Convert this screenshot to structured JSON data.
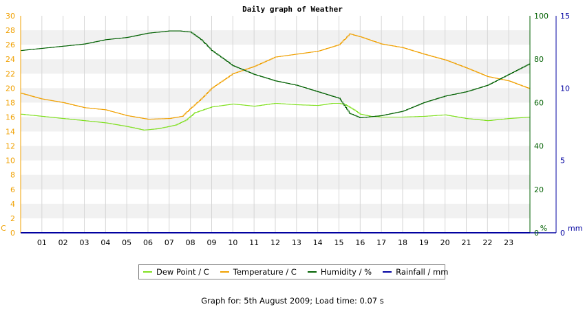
{
  "chart_data": {
    "type": "line",
    "title": "Daily graph of Weather",
    "x_ticks": [
      "01",
      "02",
      "03",
      "04",
      "05",
      "06",
      "07",
      "08",
      "09",
      "10",
      "11",
      "12",
      "13",
      "14",
      "15",
      "16",
      "17",
      "18",
      "19",
      "20",
      "21",
      "22",
      "23"
    ],
    "xlim": [
      0,
      24
    ],
    "axes": {
      "temp": {
        "unit_label": "C",
        "range": [
          0,
          30
        ],
        "ticks": [
          0,
          2,
          4,
          6,
          8,
          10,
          12,
          14,
          16,
          18,
          20,
          22,
          24,
          26,
          28,
          30
        ],
        "color": "#f0a000"
      },
      "humidity": {
        "unit_label": "%",
        "range": [
          0,
          100
        ],
        "ticks": [
          0,
          20,
          40,
          60,
          80,
          100
        ],
        "color": "#006000"
      },
      "rain": {
        "unit_label": "mm",
        "range": [
          0,
          15
        ],
        "ticks": [
          0,
          5,
          10,
          15
        ],
        "color": "#0000a0"
      }
    },
    "series": [
      {
        "name": "Dew Point / C",
        "axis": "temp",
        "color": "#80e020",
        "points": [
          [
            0,
            16.4
          ],
          [
            1,
            16.1
          ],
          [
            2,
            15.8
          ],
          [
            3,
            15.5
          ],
          [
            4,
            15.2
          ],
          [
            5,
            14.7
          ],
          [
            5.8,
            14.2
          ],
          [
            6.5,
            14.4
          ],
          [
            7.3,
            14.9
          ],
          [
            7.8,
            15.6
          ],
          [
            8.2,
            16.6
          ],
          [
            8.7,
            17.1
          ],
          [
            9,
            17.4
          ],
          [
            10,
            17.8
          ],
          [
            11,
            17.5
          ],
          [
            12,
            17.9
          ],
          [
            13,
            17.7
          ],
          [
            14,
            17.6
          ],
          [
            14.7,
            17.9
          ],
          [
            15,
            17.9
          ],
          [
            15.3,
            17.7
          ],
          [
            15.7,
            17
          ],
          [
            16,
            16.4
          ],
          [
            16.5,
            16.1
          ],
          [
            17,
            16
          ],
          [
            18,
            16
          ],
          [
            19,
            16.1
          ],
          [
            20,
            16.3
          ],
          [
            21,
            15.8
          ],
          [
            22,
            15.5
          ],
          [
            23,
            15.8
          ],
          [
            24,
            16
          ]
        ]
      },
      {
        "name": "Temperature / C",
        "axis": "temp",
        "color": "#f0a000",
        "points": [
          [
            0,
            19.3
          ],
          [
            1,
            18.5
          ],
          [
            2,
            18
          ],
          [
            3,
            17.3
          ],
          [
            4,
            17
          ],
          [
            5,
            16.2
          ],
          [
            6,
            15.7
          ],
          [
            7,
            15.8
          ],
          [
            7.6,
            16.1
          ],
          [
            8,
            17.2
          ],
          [
            8.5,
            18.5
          ],
          [
            9,
            20
          ],
          [
            10,
            22
          ],
          [
            11,
            23
          ],
          [
            12,
            24.3
          ],
          [
            13,
            24.7
          ],
          [
            14,
            25.1
          ],
          [
            15,
            26
          ],
          [
            15.5,
            27.5
          ],
          [
            16,
            27.1
          ],
          [
            17,
            26.1
          ],
          [
            18,
            25.6
          ],
          [
            19,
            24.7
          ],
          [
            20,
            23.9
          ],
          [
            21,
            22.8
          ],
          [
            22,
            21.6
          ],
          [
            23,
            21
          ],
          [
            24,
            19.9
          ]
        ]
      },
      {
        "name": "Humidity / %",
        "axis": "humidity",
        "color": "#006000",
        "points": [
          [
            0,
            84
          ],
          [
            1,
            85
          ],
          [
            2,
            86
          ],
          [
            3,
            87
          ],
          [
            4,
            89
          ],
          [
            5,
            90
          ],
          [
            6,
            92
          ],
          [
            7,
            93
          ],
          [
            7.5,
            93
          ],
          [
            8,
            92.5
          ],
          [
            8.5,
            89
          ],
          [
            9,
            84
          ],
          [
            10,
            77
          ],
          [
            11,
            73
          ],
          [
            12,
            70
          ],
          [
            13,
            68
          ],
          [
            14,
            65
          ],
          [
            15,
            62
          ],
          [
            15.5,
            55
          ],
          [
            16,
            53
          ],
          [
            17,
            54
          ],
          [
            18,
            56
          ],
          [
            19,
            60
          ],
          [
            20,
            63
          ],
          [
            21,
            65
          ],
          [
            22,
            68
          ],
          [
            23,
            73
          ],
          [
            24,
            78
          ]
        ]
      },
      {
        "name": "Rainfall / mm",
        "axis": "rain",
        "color": "#0000a0",
        "points": [
          [
            0,
            0
          ],
          [
            24,
            0
          ]
        ]
      }
    ],
    "grid": true,
    "legend_position": "bottom"
  },
  "footer": "Graph for: 5th August 2009; Load time: 0.07 s"
}
